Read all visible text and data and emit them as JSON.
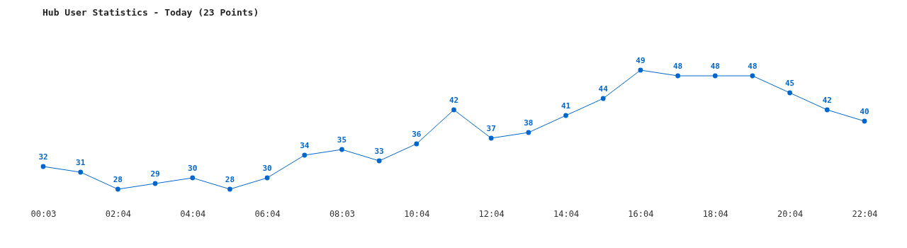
{
  "chart_data": {
    "type": "line",
    "title": "Hub User Statistics - Today (23 Points)",
    "categories": [
      "00:03",
      null,
      "02:04",
      null,
      "04:04",
      null,
      "06:04",
      null,
      "08:03",
      null,
      "10:04",
      null,
      "12:04",
      null,
      "14:04",
      null,
      "16:04",
      null,
      "18:04",
      null,
      "20:04",
      null,
      "22:04"
    ],
    "series": [
      {
        "color": "#0066cc",
        "values": [
          32,
          31,
          28,
          29,
          30,
          28,
          30,
          34,
          35,
          33,
          36,
          42,
          37,
          38,
          41,
          44,
          49,
          48,
          48,
          48,
          45,
          42,
          40
        ]
      }
    ],
    "data_labels": true,
    "marker": "circle",
    "grid": false,
    "legend": false
  }
}
